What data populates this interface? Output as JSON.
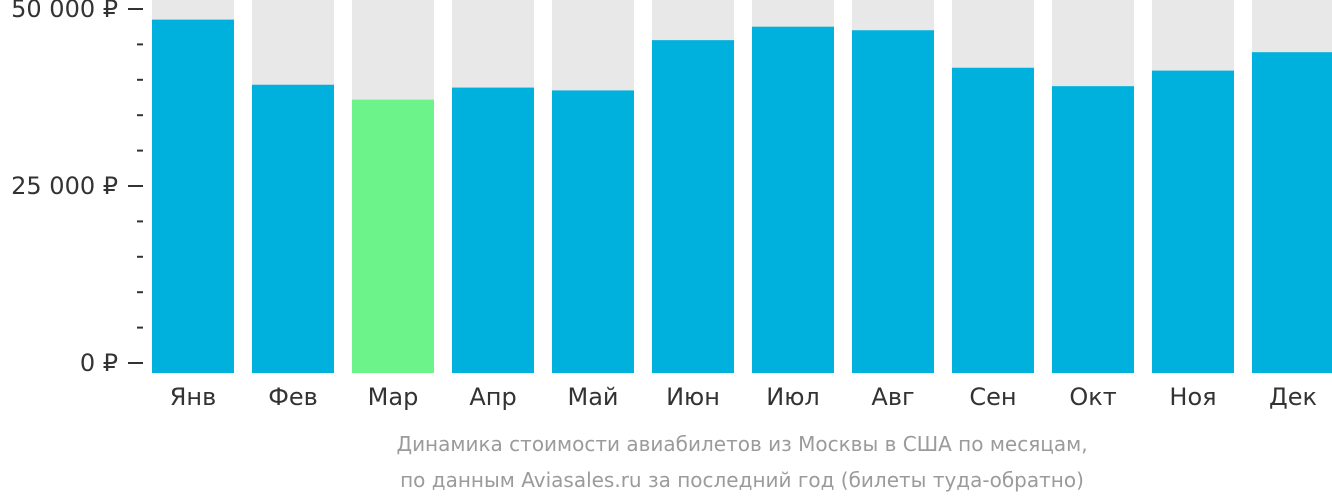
{
  "chart_data": {
    "type": "bar",
    "categories": [
      "Янв",
      "Фев",
      "Мар",
      "Апр",
      "Май",
      "Июн",
      "Июл",
      "Авг",
      "Сен",
      "Окт",
      "Ноя",
      "Дек"
    ],
    "values": [
      48500,
      39300,
      37200,
      38900,
      38500,
      45600,
      47500,
      47000,
      41700,
      39100,
      41300,
      43900
    ],
    "ylim": [
      0,
      52000
    ],
    "yticks": [
      {
        "value": 0,
        "label": "0 ₽"
      },
      {
        "value": 25000,
        "label": "25 000 ₽"
      },
      {
        "value": 50000,
        "label": "50 000 ₽"
      }
    ],
    "minor_tick_step": 5000,
    "highlight_index": 2,
    "colors": {
      "bar": "#00b0dd",
      "highlight": "#6cf389",
      "track": "#e8e8e8",
      "text": "#333333",
      "caption": "#9b9b9b",
      "axis": "#333333"
    }
  },
  "caption": {
    "line1": "Динамика стоимости авиабилетов из Москвы в США по месяцам,",
    "line2": "по данным Aviasales.ru за последний год (билеты туда-обратно)"
  }
}
